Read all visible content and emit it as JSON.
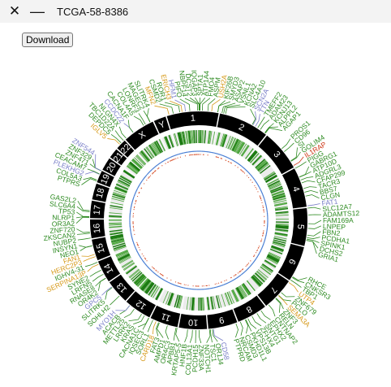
{
  "window": {
    "close_glyph": "✕",
    "minimize_glyph": "—",
    "title": "TCGA-58-8386"
  },
  "toolbar": {
    "download_label": "Download"
  },
  "chart_data": {
    "type": "circos",
    "chromosomes": [
      {
        "name": "1",
        "size": 249
      },
      {
        "name": "2",
        "size": 243
      },
      {
        "name": "3",
        "size": 198
      },
      {
        "name": "4",
        "size": 191
      },
      {
        "name": "5",
        "size": 181
      },
      {
        "name": "6",
        "size": 171
      },
      {
        "name": "7",
        "size": 159
      },
      {
        "name": "8",
        "size": 146
      },
      {
        "name": "9",
        "size": 141
      },
      {
        "name": "10",
        "size": 135
      },
      {
        "name": "11",
        "size": 135
      },
      {
        "name": "12",
        "size": 133
      },
      {
        "name": "13",
        "size": 115
      },
      {
        "name": "14",
        "size": 107
      },
      {
        "name": "15",
        "size": 102
      },
      {
        "name": "16",
        "size": 90
      },
      {
        "name": "17",
        "size": 83
      },
      {
        "name": "18",
        "size": 78
      },
      {
        "name": "19",
        "size": 59
      },
      {
        "name": "20",
        "size": 63
      },
      {
        "name": "21",
        "size": 48
      },
      {
        "name": "22",
        "size": 51
      },
      {
        "name": "X",
        "size": 155
      },
      {
        "name": "Y",
        "size": 59
      }
    ],
    "label_colors": {
      "missense": "#2e8b22",
      "nonsense": "#d69a1a",
      "fusion": "#cc3311",
      "other": "#7a7fc8"
    },
    "genes": [
      {
        "name": "MFN2",
        "chr": "1",
        "pos": 12,
        "type": "nonsense"
      },
      {
        "name": "CSMD2",
        "chr": "1",
        "pos": 33,
        "type": "missense"
      },
      {
        "name": "ROR1",
        "chr": "1",
        "pos": 64,
        "type": "missense"
      },
      {
        "name": "ERICH3",
        "chr": "1",
        "pos": 75,
        "type": "nonsense"
      },
      {
        "name": "PIFO",
        "chr": "1",
        "pos": 112,
        "type": "missense"
      },
      {
        "name": "HFM1",
        "chr": "1",
        "pos": 91,
        "type": "other"
      },
      {
        "name": "NBPF14",
        "chr": "1",
        "pos": 148,
        "type": "missense"
      },
      {
        "name": "IQGAP3",
        "chr": "1",
        "pos": 156,
        "type": "missense"
      },
      {
        "name": "SPTA1",
        "chr": "1",
        "pos": 158,
        "type": "missense"
      },
      {
        "name": "DCST2",
        "chr": "1",
        "pos": 155,
        "type": "missense"
      },
      {
        "name": "ATP1A4",
        "chr": "1",
        "pos": 160,
        "type": "missense"
      },
      {
        "name": "FMO4",
        "chr": "1",
        "pos": 171,
        "type": "missense"
      },
      {
        "name": "ASPM",
        "chr": "1",
        "pos": 197,
        "type": "missense"
      },
      {
        "name": "USH2A",
        "chr": "1",
        "pos": 215,
        "type": "nonsense"
      },
      {
        "name": "KIF26B",
        "chr": "1",
        "pos": 245,
        "type": "missense"
      },
      {
        "name": "SMYD3",
        "chr": "1",
        "pos": 246,
        "type": "missense"
      },
      {
        "name": "ASAP2",
        "chr": "2",
        "pos": 9,
        "type": "missense"
      },
      {
        "name": "KCNA2",
        "chr": "2",
        "pos": 26,
        "type": "missense"
      },
      {
        "name": "VSNL1",
        "chr": "2",
        "pos": 17,
        "type": "missense"
      },
      {
        "name": "TTN",
        "chr": "2",
        "pos": 179,
        "type": "other"
      },
      {
        "name": "SLC4A10",
        "chr": "2",
        "pos": 162,
        "type": "missense"
      },
      {
        "name": "SCN2A",
        "chr": "2",
        "pos": 166,
        "type": "other"
      },
      {
        "name": "TMEFF2",
        "chr": "2",
        "pos": 192,
        "type": "missense"
      },
      {
        "name": "ADAM23",
        "chr": "2",
        "pos": 207,
        "type": "missense"
      },
      {
        "name": "KCNJ13",
        "chr": "2",
        "pos": 233,
        "type": "missense"
      },
      {
        "name": "ALPPL2",
        "chr": "2",
        "pos": 233,
        "type": "missense"
      },
      {
        "name": "AGAP1",
        "chr": "2",
        "pos": 236,
        "type": "missense"
      },
      {
        "name": "PROS1",
        "chr": "3",
        "pos": 93,
        "type": "missense"
      },
      {
        "name": "CD96",
        "chr": "3",
        "pos": 111,
        "type": "missense"
      },
      {
        "name": "GOLIM4",
        "chr": "3",
        "pos": 167,
        "type": "missense"
      },
      {
        "name": "SI",
        "chr": "3",
        "pos": 164,
        "type": "missense"
      },
      {
        "name": "IL1RAP",
        "chr": "3",
        "pos": 190,
        "type": "fusion"
      },
      {
        "name": "PIGG",
        "chr": "4",
        "pos": 1,
        "type": "missense"
      },
      {
        "name": "GABRG1",
        "chr": "4",
        "pos": 46,
        "type": "missense"
      },
      {
        "name": "ATP10D",
        "chr": "4",
        "pos": 47,
        "type": "missense"
      },
      {
        "name": "ADGRL3",
        "chr": "4",
        "pos": 62,
        "type": "missense"
      },
      {
        "name": "CFAP299",
        "chr": "4",
        "pos": 76,
        "type": "missense"
      },
      {
        "name": "TACR3",
        "chr": "4",
        "pos": 104,
        "type": "missense"
      },
      {
        "name": "BBS7",
        "chr": "4",
        "pos": 122,
        "type": "missense"
      },
      {
        "name": "CLGN",
        "chr": "4",
        "pos": 141,
        "type": "missense"
      },
      {
        "name": "FAT1",
        "chr": "4",
        "pos": 187,
        "type": "other"
      },
      {
        "name": "SLC12A7",
        "chr": "5",
        "pos": 1,
        "type": "missense"
      },
      {
        "name": "ADAMTS12",
        "chr": "5",
        "pos": 33,
        "type": "missense"
      },
      {
        "name": "FAM169A",
        "chr": "5",
        "pos": 74,
        "type": "missense"
      },
      {
        "name": "LNPEP",
        "chr": "5",
        "pos": 96,
        "type": "missense"
      },
      {
        "name": "FBN2",
        "chr": "5",
        "pos": 128,
        "type": "missense"
      },
      {
        "name": "PCDHA1",
        "chr": "5",
        "pos": 140,
        "type": "missense"
      },
      {
        "name": "DCHS2",
        "chr": "5",
        "pos": 153,
        "type": "missense"
      },
      {
        "name": "GRIA1",
        "chr": "5",
        "pos": 153,
        "type": "missense"
      },
      {
        "name": "SPINK1",
        "chr": "5",
        "pos": 147,
        "type": "missense"
      },
      {
        "name": "TBP1",
        "chr": "6",
        "pos": 170,
        "type": "missense"
      },
      {
        "name": "CNKSR3",
        "chr": "6",
        "pos": 154,
        "type": "missense"
      },
      {
        "name": "RHCE",
        "chr": "6",
        "pos": 150,
        "type": "missense"
      },
      {
        "name": "UTP4",
        "chr": "7",
        "pos": 5,
        "type": "nonsense"
      },
      {
        "name": "ZNF679",
        "chr": "7",
        "pos": 64,
        "type": "missense"
      },
      {
        "name": "RELN",
        "chr": "7",
        "pos": 103,
        "type": "missense"
      },
      {
        "name": "SEMA3A",
        "chr": "7",
        "pos": 84,
        "type": "nonsense"
      },
      {
        "name": "PCLO",
        "chr": "7",
        "pos": 82,
        "type": "missense"
      },
      {
        "name": "ZNF3",
        "chr": "7",
        "pos": 100,
        "type": "missense"
      },
      {
        "name": "CNTNAP2",
        "chr": "7",
        "pos": 147,
        "type": "missense"
      },
      {
        "name": "EPHX2",
        "chr": "8",
        "pos": 27,
        "type": "missense"
      },
      {
        "name": "SNTG1",
        "chr": "8",
        "pos": 50,
        "type": "missense"
      },
      {
        "name": "PKHD1L1",
        "chr": "8",
        "pos": 110,
        "type": "missense"
      },
      {
        "name": "CSMD3",
        "chr": "8",
        "pos": 113,
        "type": "missense"
      },
      {
        "name": "NRCAM",
        "chr": "8",
        "pos": 138,
        "type": "missense"
      },
      {
        "name": "VPS13B",
        "chr": "8",
        "pos": 99,
        "type": "missense"
      },
      {
        "name": "ZFHX4",
        "chr": "8",
        "pos": 77,
        "type": "missense"
      },
      {
        "name": "CD58",
        "chr": "9",
        "pos": 117,
        "type": "other"
      },
      {
        "name": "NOTCH1",
        "chr": "9",
        "pos": 136,
        "type": "missense"
      },
      {
        "name": "TSC1",
        "chr": "9",
        "pos": 132,
        "type": "missense"
      },
      {
        "name": "OR1J4",
        "chr": "9",
        "pos": 122,
        "type": "missense"
      },
      {
        "name": "PTPRD",
        "chr": "9",
        "pos": 8,
        "type": "missense"
      },
      {
        "name": "HNF1B",
        "chr": "10",
        "pos": 92,
        "type": "missense"
      },
      {
        "name": "COL13A1",
        "chr": "10",
        "pos": 69,
        "type": "missense"
      },
      {
        "name": "PCDH15",
        "chr": "10",
        "pos": 53,
        "type": "missense"
      },
      {
        "name": "ZNF33A",
        "chr": "10",
        "pos": 38,
        "type": "missense"
      },
      {
        "name": "AMPD1",
        "chr": "11",
        "pos": 88,
        "type": "missense"
      },
      {
        "name": "APBB1",
        "chr": "11",
        "pos": 6,
        "type": "missense"
      },
      {
        "name": "OR4C3",
        "chr": "11",
        "pos": 48,
        "type": "missense"
      },
      {
        "name": "FAT3",
        "chr": "11",
        "pos": 92,
        "type": "missense"
      },
      {
        "name": "SORL1",
        "chr": "11",
        "pos": 121,
        "type": "missense"
      },
      {
        "name": "CARD18",
        "chr": "11",
        "pos": 105,
        "type": "nonsense"
      },
      {
        "name": "CACNA1C",
        "chr": "12",
        "pos": 2,
        "type": "missense"
      },
      {
        "name": "KRAS",
        "chr": "12",
        "pos": 25,
        "type": "missense"
      },
      {
        "name": "LRRK2",
        "chr": "12",
        "pos": 40,
        "type": "missense"
      },
      {
        "name": "ACACB",
        "chr": "12",
        "pos": 109,
        "type": "missense"
      },
      {
        "name": "MYO1H",
        "chr": "12",
        "pos": 109,
        "type": "other"
      },
      {
        "name": "SOHLH2",
        "chr": "13",
        "pos": 36,
        "type": "missense"
      },
      {
        "name": "SLITRK5",
        "chr": "13",
        "pos": 88,
        "type": "missense"
      },
      {
        "name": "GPC5",
        "chr": "13",
        "pos": 92,
        "type": "other"
      },
      {
        "name": "OR4K2",
        "chr": "14",
        "pos": 20,
        "type": "missense"
      },
      {
        "name": "RNASE8",
        "chr": "14",
        "pos": 21,
        "type": "missense"
      },
      {
        "name": "LRFN5",
        "chr": "14",
        "pos": 42,
        "type": "missense"
      },
      {
        "name": "SYNE2",
        "chr": "14",
        "pos": 64,
        "type": "missense"
      },
      {
        "name": "SERPINA13P",
        "chr": "14",
        "pos": 94,
        "type": "nonsense"
      },
      {
        "name": "IGHV4-31",
        "chr": "14",
        "pos": 106,
        "type": "missense"
      },
      {
        "name": "HERC2P3",
        "chr": "15",
        "pos": 20,
        "type": "nonsense"
      },
      {
        "name": "FAN1",
        "chr": "15",
        "pos": 31,
        "type": "nonsense"
      },
      {
        "name": "NEO1",
        "chr": "15",
        "pos": 73,
        "type": "missense"
      },
      {
        "name": "INSYN1",
        "chr": "15",
        "pos": 73,
        "type": "missense"
      },
      {
        "name": "NUBP2",
        "chr": "16",
        "pos": 2,
        "type": "missense"
      },
      {
        "name": "METTL25",
        "chr": "12",
        "pos": 82,
        "type": "missense"
      },
      {
        "name": "ZNF720",
        "chr": "16",
        "pos": 31,
        "type": "missense"
      },
      {
        "name": "ZKSCAN2",
        "chr": "16",
        "pos": 25,
        "type": "missense"
      },
      {
        "name": "NLRP1",
        "chr": "17",
        "pos": 5,
        "type": "missense"
      },
      {
        "name": "SLC6A4",
        "chr": "17",
        "pos": 30,
        "type": "missense"
      },
      {
        "name": "OR3A2",
        "chr": "17",
        "pos": 3,
        "type": "missense"
      },
      {
        "name": "GAS2L2",
        "chr": "17",
        "pos": 35,
        "type": "missense"
      },
      {
        "name": "TP53",
        "chr": "17",
        "pos": 7,
        "type": "missense"
      },
      {
        "name": "COL5A3",
        "chr": "19",
        "pos": 10,
        "type": "missense"
      },
      {
        "name": "PTPRS",
        "chr": "19",
        "pos": 5,
        "type": "missense"
      },
      {
        "name": "ZNF329",
        "chr": "19",
        "pos": 58,
        "type": "missense"
      },
      {
        "name": "ZNF544",
        "chr": "19",
        "pos": 58,
        "type": "other"
      },
      {
        "name": "PLEKHG2",
        "chr": "19",
        "pos": 39,
        "type": "other"
      },
      {
        "name": "CEACAM7",
        "chr": "19",
        "pos": 41,
        "type": "missense"
      },
      {
        "name": "ZNF471",
        "chr": "19",
        "pos": 57,
        "type": "missense"
      },
      {
        "name": "DEPDC5",
        "chr": "22",
        "pos": 31,
        "type": "missense"
      },
      {
        "name": "TBC1D22A",
        "chr": "22",
        "pos": 47,
        "type": "missense"
      },
      {
        "name": "IGLV5",
        "chr": "22",
        "pos": 22,
        "type": "nonsense"
      },
      {
        "name": "KRTAP5-5",
        "chr": "11",
        "pos": 1,
        "type": "missense"
      },
      {
        "name": "IQSEC3",
        "chr": "12",
        "pos": 1,
        "type": "missense"
      },
      {
        "name": "NLGN4X",
        "chr": "X",
        "pos": 6,
        "type": "missense"
      },
      {
        "name": "CCDC22",
        "chr": "X",
        "pos": 49,
        "type": "other"
      },
      {
        "name": "CACNA1F",
        "chr": "X",
        "pos": 49,
        "type": "missense"
      },
      {
        "name": "MAGEC2",
        "chr": "X",
        "pos": 142,
        "type": "missense"
      },
      {
        "name": "COL4A5",
        "chr": "X",
        "pos": 108,
        "type": "missense"
      },
      {
        "name": "LONRF3",
        "chr": "X",
        "pos": 118,
        "type": "missense"
      },
      {
        "name": "SLITRK4",
        "chr": "X",
        "pos": 143,
        "type": "missense"
      }
    ]
  }
}
